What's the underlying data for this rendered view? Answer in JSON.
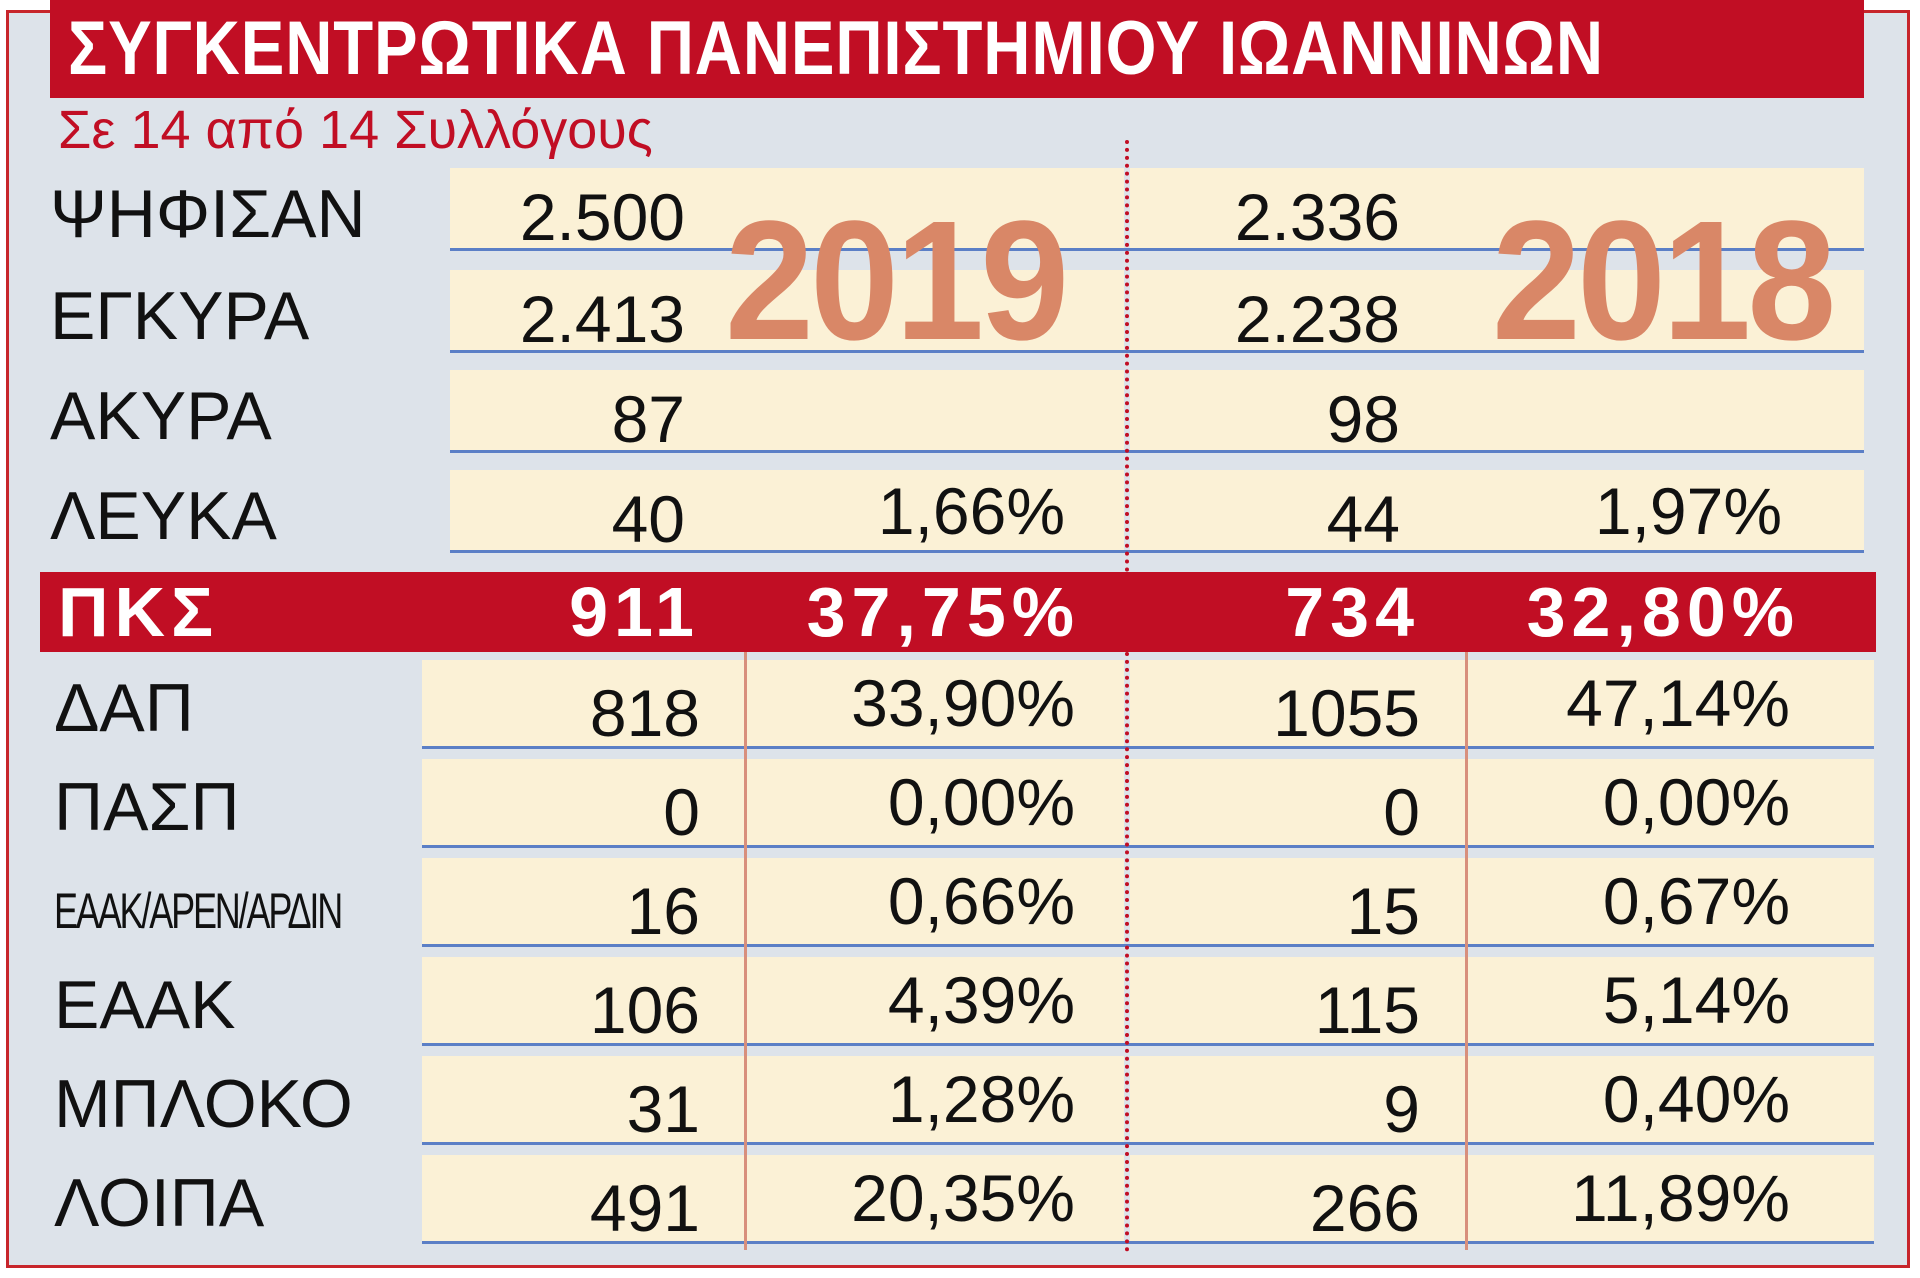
{
  "chart_data": {
    "type": "table",
    "title": "ΣΥΓΚΕΝΤΡΩΤΙΚΑ ΠΑΝΕΠΙΣΤΗΜΙΟΥ ΙΩΑΝΝΙΝΩΝ",
    "subtitle": "Σε 14 από 14 Συλλόγους",
    "years": [
      "2019",
      "2018"
    ],
    "summary_rows": [
      {
        "label": "ΨΗΦΙΣΑΝ",
        "v2019": "2.500",
        "p2019": "",
        "v2018": "2.336",
        "p2018": ""
      },
      {
        "label": "ΕΓΚΥΡΑ",
        "v2019": "2.413",
        "p2019": "",
        "v2018": "2.238",
        "p2018": ""
      },
      {
        "label": "ΑΚΥΡΑ",
        "v2019": "87",
        "p2019": "",
        "v2018": "98",
        "p2018": ""
      },
      {
        "label": "ΛΕΥΚΑ",
        "v2019": "40",
        "p2019": "1,66%",
        "v2018": "44",
        "p2018": "1,97%"
      }
    ],
    "highlight_row": {
      "label": "ΠΚΣ",
      "v2019": "911",
      "p2019": "37,75%",
      "v2018": "734",
      "p2018": "32,80%"
    },
    "party_rows": [
      {
        "label": "ΔΑΠ",
        "v2019": "818",
        "p2019": "33,90%",
        "v2018": "1055",
        "p2018": "47,14%"
      },
      {
        "label": "ΠΑΣΠ",
        "v2019": "0",
        "p2019": "0,00%",
        "v2018": "0",
        "p2018": "0,00%"
      },
      {
        "label": "ΕΑΑΚ/ΑΡΕΝ/ΑΡΔΙΝ",
        "v2019": "16",
        "p2019": "0,66%",
        "v2018": "15",
        "p2018": "0,67%"
      },
      {
        "label": "ΕΑΑΚ",
        "v2019": "106",
        "p2019": "4,39%",
        "v2018": "115",
        "p2018": "5,14%"
      },
      {
        "label": "ΜΠΛΟΚΟ",
        "v2019": "31",
        "p2019": "1,28%",
        "v2018": "9",
        "p2018": "0,40%"
      },
      {
        "label": "ΛΟΙΠΑ",
        "v2019": "491",
        "p2019": "20,35%",
        "v2018": "266",
        "p2018": "11,89%"
      }
    ]
  },
  "colors": {
    "accent_red": "#c10e24",
    "background": "#dde3ea",
    "cell": "#fbf1d6",
    "year_watermark": "#d98767",
    "rule_blue": "#5b7fc6"
  }
}
